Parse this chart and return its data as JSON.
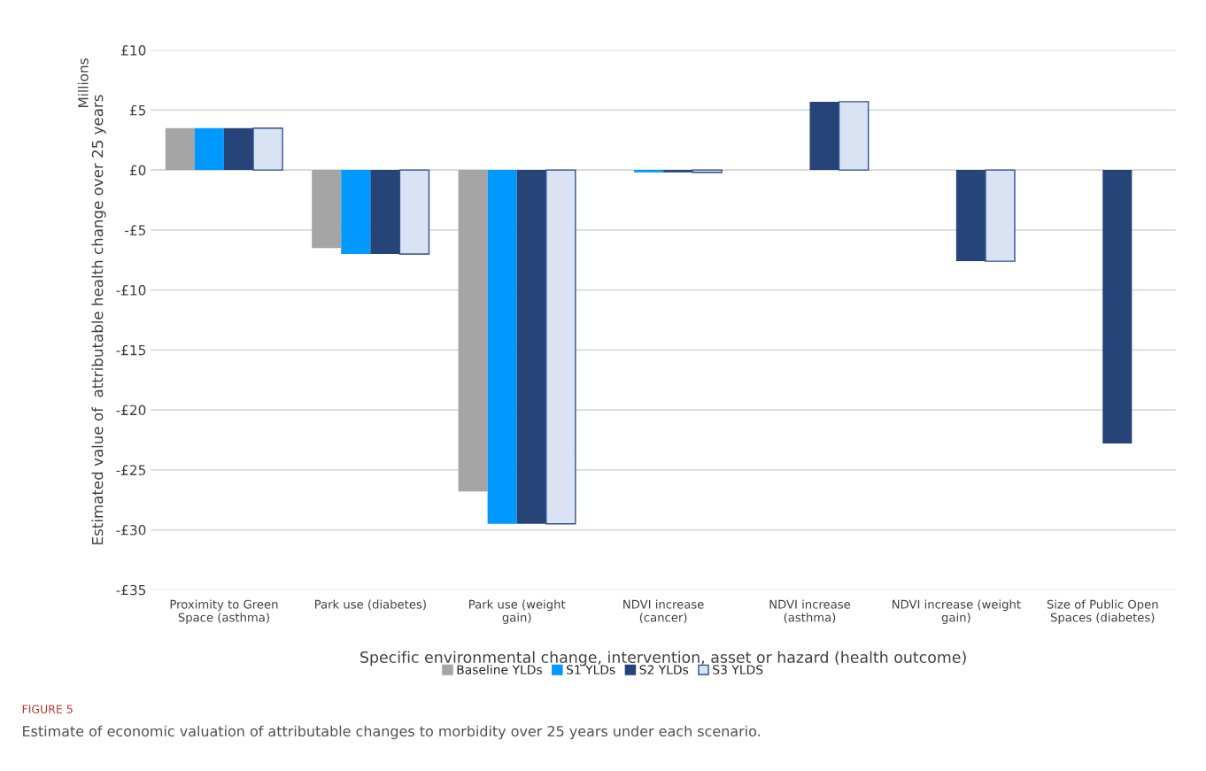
{
  "chart_data": {
    "type": "bar",
    "title": "FIGURE 5",
    "subtitle": "Estimate of economic valuation of attributable changes to morbidity over 25 years under each scenario.",
    "xlabel": "Specific environmental change, intervention, asset or hazard (health outcome)",
    "ylabel": "Estimated value of  attributable health change over 25 years",
    "annotations": [
      "Millions"
    ],
    "categories": [
      "Proximity to Green Space (asthma)",
      "Park use (diabetes)",
      "Park use (weight gain)",
      "NDVI increase (cancer)",
      "NDVI increase (asthma)",
      "NDVI increase (weight gain)",
      "Size of Public Open Spaces (diabetes)"
    ],
    "series": [
      {
        "name": "Baseline YLDs",
        "color": "#a5a5a5",
        "values": [
          3.5,
          -6.5,
          -26.8,
          null,
          null,
          null,
          null
        ]
      },
      {
        "name": "S1 YLDs",
        "color": "#0099ff",
        "values": [
          3.5,
          -7.0,
          -29.5,
          -0.2,
          null,
          null,
          null
        ]
      },
      {
        "name": "S2 YLDs",
        "color": "#264478",
        "values": [
          3.5,
          -7.0,
          -29.5,
          -0.2,
          5.7,
          -7.6,
          -22.8
        ]
      },
      {
        "name": "S3 YLDS",
        "color": "#dae3f3",
        "values": [
          3.5,
          -7.0,
          -29.5,
          -0.2,
          5.7,
          -7.6,
          null
        ]
      }
    ],
    "ylim": [
      -35,
      10
    ],
    "yticks": [
      {
        "value": -35,
        "label": "-£35"
      },
      {
        "value": -30,
        "label": "-£30"
      },
      {
        "value": -25,
        "label": "-£25"
      },
      {
        "value": -20,
        "label": "-£20"
      },
      {
        "value": -15,
        "label": "-£15"
      },
      {
        "value": -10,
        "label": "-£10"
      },
      {
        "value": -5,
        "label": "-£5"
      },
      {
        "value": 0,
        "label": "£0"
      },
      {
        "value": 5,
        "label": "£5"
      },
      {
        "value": 10,
        "label": "£10"
      }
    ],
    "grid": "y",
    "legend": "bottom"
  }
}
